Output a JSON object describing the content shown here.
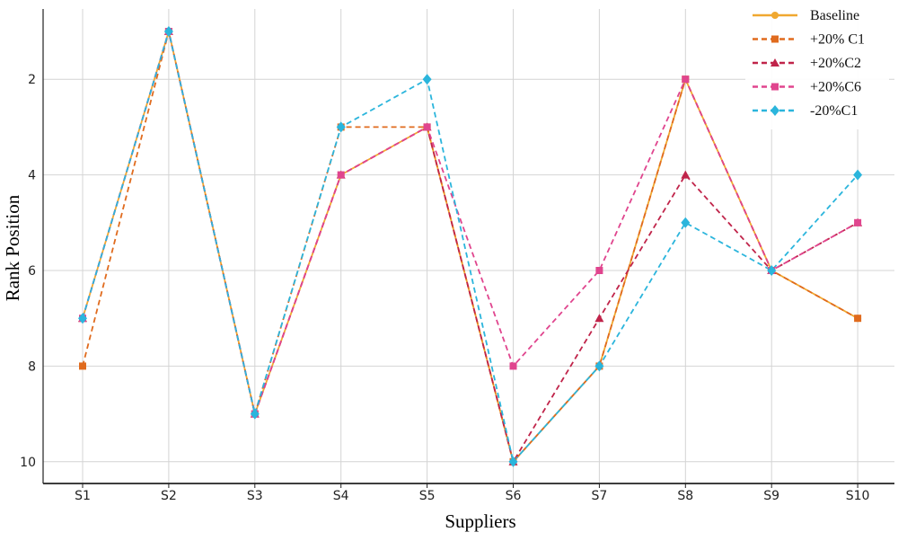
{
  "chart_data": {
    "type": "line",
    "xlabel": "Suppliers",
    "ylabel": "Rank Position",
    "categories": [
      "S1",
      "S2",
      "S3",
      "S4",
      "S5",
      "S6",
      "S7",
      "S8",
      "S9",
      "S10"
    ],
    "yticks": [
      2,
      4,
      6,
      8,
      10
    ],
    "ylim": [
      0.9,
      10.4
    ],
    "y_inverted": true,
    "grid": true,
    "legend_position": "top-right",
    "series": [
      {
        "name": "Baseline",
        "color": "#f0a830",
        "dash": "solid",
        "marker": "circle",
        "values": [
          7,
          1,
          9,
          4,
          3,
          10,
          8,
          2,
          6,
          7
        ]
      },
      {
        "name": "+20% C1",
        "color": "#e06b1e",
        "dash": "dashed",
        "marker": "square",
        "values": [
          8,
          1,
          9,
          3,
          3,
          10,
          8,
          2,
          6,
          7
        ]
      },
      {
        "name": "+20%C2",
        "color": "#c0244a",
        "dash": "dashed",
        "marker": "triangle",
        "values": [
          7,
          1,
          9,
          4,
          3,
          10,
          7,
          4,
          6,
          5
        ]
      },
      {
        "name": "+20%C6",
        "color": "#e0458e",
        "dash": "dashed",
        "marker": "square",
        "values": [
          7,
          1,
          9,
          4,
          3,
          8,
          6,
          2,
          6,
          5
        ]
      },
      {
        "name": "-20%C1",
        "color": "#2bb5dc",
        "dash": "dashed",
        "marker": "diamond",
        "values": [
          7,
          1,
          9,
          3,
          2,
          10,
          8,
          5,
          6,
          4
        ]
      }
    ]
  }
}
